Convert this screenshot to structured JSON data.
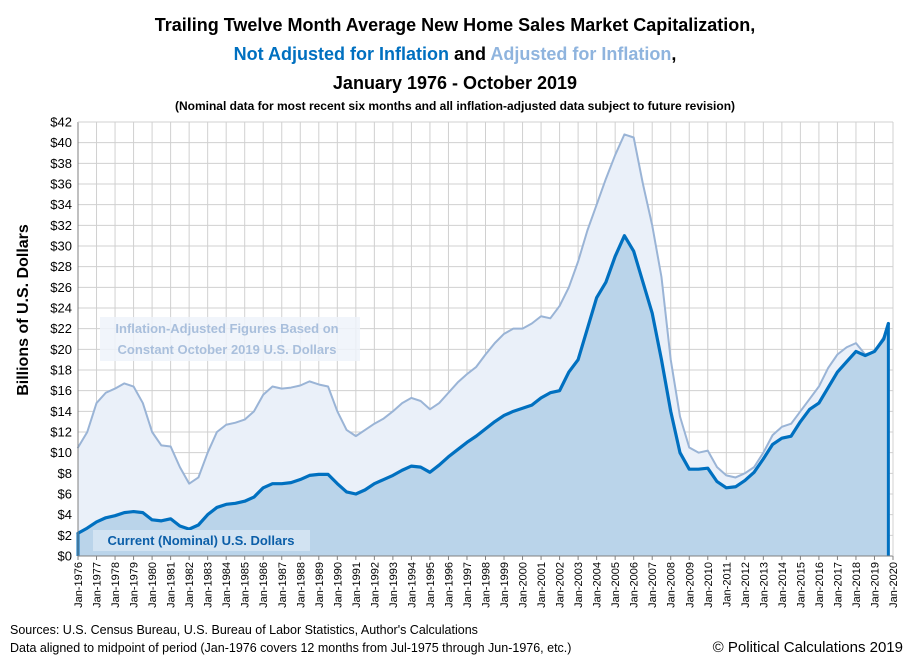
{
  "chart_data": {
    "type": "area",
    "title_lines": [
      "Trailing Twelve Month Average New Home Sales Market Capitalization,",
      "January 1976 - October 2019"
    ],
    "title_nominal": "Not Adjusted for Inflation",
    "title_and": " and ",
    "title_adjusted": "Adjusted for Inflation",
    "title_comma": ",",
    "subtitle": "(Nominal data for most recent six months and all inflation-adjusted data subject to future revision)",
    "ylabel": "Billions of U.S. Dollars",
    "ylim": [
      0,
      42
    ],
    "yticks": [
      0,
      2,
      4,
      6,
      8,
      10,
      12,
      14,
      16,
      18,
      20,
      22,
      24,
      26,
      28,
      30,
      32,
      34,
      36,
      38,
      40,
      42
    ],
    "ytick_prefix": "$",
    "xlim": [
      1976,
      2020
    ],
    "xtick_labels": [
      "Jan-1976",
      "Jan-1977",
      "Jan-1978",
      "Jan-1979",
      "Jan-1980",
      "Jan-1981",
      "Jan-1982",
      "Jan-1983",
      "Jan-1984",
      "Jan-1985",
      "Jan-1986",
      "Jan-1987",
      "Jan-1988",
      "Jan-1989",
      "Jan-1990",
      "Jan-1991",
      "Jan-1992",
      "Jan-1993",
      "Jan-1994",
      "Jan-1995",
      "Jan-1996",
      "Jan-1997",
      "Jan-1998",
      "Jan-1999",
      "Jan-2000",
      "Jan-2001",
      "Jan-2002",
      "Jan-2003",
      "Jan-2004",
      "Jan-2005",
      "Jan-2006",
      "Jan-2007",
      "Jan-2008",
      "Jan-2009",
      "Jan-2010",
      "Jan-2011",
      "Jan-2012",
      "Jan-2013",
      "Jan-2014",
      "Jan-2015",
      "Jan-2016",
      "Jan-2017",
      "Jan-2018",
      "Jan-2019",
      "Jan-2020"
    ],
    "grid": true,
    "series": [
      {
        "name": "Inflation-Adjusted Figures Based on Constant October 2019 U.S. Dollars",
        "color": "#9ab4d6",
        "fill": "#eaf0f9",
        "x": [
          1976.0,
          1976.5,
          1977.0,
          1977.5,
          1978.0,
          1978.5,
          1979.0,
          1979.5,
          1980.0,
          1980.5,
          1981.0,
          1981.5,
          1982.0,
          1982.5,
          1983.0,
          1983.5,
          1984.0,
          1984.5,
          1985.0,
          1985.5,
          1986.0,
          1986.5,
          1987.0,
          1987.5,
          1988.0,
          1988.5,
          1989.0,
          1989.5,
          1990.0,
          1990.5,
          1991.0,
          1991.5,
          1992.0,
          1992.5,
          1993.0,
          1993.5,
          1994.0,
          1994.5,
          1995.0,
          1995.5,
          1996.0,
          1996.5,
          1997.0,
          1997.5,
          1998.0,
          1998.5,
          1999.0,
          1999.5,
          2000.0,
          2000.5,
          2001.0,
          2001.5,
          2002.0,
          2002.5,
          2003.0,
          2003.5,
          2004.0,
          2004.5,
          2005.0,
          2005.5,
          2006.0,
          2006.5,
          2007.0,
          2007.5,
          2008.0,
          2008.5,
          2009.0,
          2009.5,
          2010.0,
          2010.5,
          2011.0,
          2011.5,
          2012.0,
          2012.5,
          2013.0,
          2013.5,
          2014.0,
          2014.5,
          2015.0,
          2015.5,
          2016.0,
          2016.5,
          2017.0,
          2017.5,
          2018.0,
          2018.5,
          2019.0,
          2019.5,
          2019.75
        ],
        "values": [
          10.5,
          12.0,
          14.8,
          15.8,
          16.2,
          16.7,
          16.4,
          14.8,
          12.0,
          10.7,
          10.6,
          8.6,
          7.0,
          7.6,
          10.0,
          12.0,
          12.7,
          12.9,
          13.2,
          14.0,
          15.6,
          16.4,
          16.2,
          16.3,
          16.5,
          16.9,
          16.6,
          16.4,
          14.0,
          12.2,
          11.6,
          12.2,
          12.8,
          13.3,
          14.0,
          14.8,
          15.3,
          15.0,
          14.2,
          14.8,
          15.8,
          16.8,
          17.6,
          18.3,
          19.5,
          20.6,
          21.5,
          22.0,
          22.0,
          22.5,
          23.2,
          23.0,
          24.2,
          26.0,
          28.5,
          31.5,
          34.0,
          36.5,
          38.8,
          40.8,
          40.5,
          36.0,
          32.0,
          27.0,
          19.0,
          13.5,
          10.5,
          10.0,
          10.2,
          8.6,
          7.8,
          7.6,
          8.0,
          8.6,
          10.0,
          11.7,
          12.5,
          12.8,
          14.0,
          15.2,
          16.4,
          18.2,
          19.5,
          20.2,
          20.6,
          19.5,
          19.8,
          21.2,
          22.5
        ]
      },
      {
        "name": "Current (Nominal) U.S. Dollars",
        "color": "#0070c0",
        "fill": "#bad4ea",
        "x": [
          1976.0,
          1976.5,
          1977.0,
          1977.5,
          1978.0,
          1978.5,
          1979.0,
          1979.5,
          1980.0,
          1980.5,
          1981.0,
          1981.5,
          1982.0,
          1982.5,
          1983.0,
          1983.5,
          1984.0,
          1984.5,
          1985.0,
          1985.5,
          1986.0,
          1986.5,
          1987.0,
          1987.5,
          1988.0,
          1988.5,
          1989.0,
          1989.5,
          1990.0,
          1990.5,
          1991.0,
          1991.5,
          1992.0,
          1992.5,
          1993.0,
          1993.5,
          1994.0,
          1994.5,
          1995.0,
          1995.5,
          1996.0,
          1996.5,
          1997.0,
          1997.5,
          1998.0,
          1998.5,
          1999.0,
          1999.5,
          2000.0,
          2000.5,
          2001.0,
          2001.5,
          2002.0,
          2002.5,
          2003.0,
          2003.5,
          2004.0,
          2004.5,
          2005.0,
          2005.5,
          2006.0,
          2006.5,
          2007.0,
          2007.5,
          2008.0,
          2008.5,
          2009.0,
          2009.5,
          2010.0,
          2010.5,
          2011.0,
          2011.5,
          2012.0,
          2012.5,
          2013.0,
          2013.5,
          2014.0,
          2014.5,
          2015.0,
          2015.5,
          2016.0,
          2016.5,
          2017.0,
          2017.5,
          2018.0,
          2018.5,
          2019.0,
          2019.5,
          2019.75
        ],
        "values": [
          2.2,
          2.7,
          3.3,
          3.7,
          3.9,
          4.2,
          4.3,
          4.2,
          3.5,
          3.4,
          3.6,
          2.9,
          2.6,
          3.0,
          4.0,
          4.7,
          5.0,
          5.1,
          5.3,
          5.7,
          6.6,
          7.0,
          7.0,
          7.1,
          7.4,
          7.8,
          7.9,
          7.9,
          7.0,
          6.2,
          6.0,
          6.4,
          7.0,
          7.4,
          7.8,
          8.3,
          8.7,
          8.6,
          8.1,
          8.8,
          9.6,
          10.3,
          11.0,
          11.6,
          12.3,
          13.0,
          13.6,
          14.0,
          14.3,
          14.6,
          15.3,
          15.8,
          16.0,
          17.8,
          19.0,
          22.0,
          25.0,
          26.5,
          29.0,
          31.0,
          29.5,
          26.5,
          23.5,
          19.0,
          14.0,
          10.0,
          8.4,
          8.4,
          8.5,
          7.2,
          6.6,
          6.7,
          7.3,
          8.1,
          9.4,
          10.8,
          11.4,
          11.6,
          13.0,
          14.2,
          14.8,
          16.3,
          17.8,
          18.8,
          19.8,
          19.4,
          19.8,
          21.0,
          22.5
        ]
      }
    ],
    "annotation_adjusted_lines": [
      "Inflation-Adjusted Figures Based on",
      "Constant October 2019 U.S. Dollars"
    ],
    "annotation_nominal": "Current (Nominal) U.S. Dollars"
  },
  "footer": {
    "source_line1": "Sources: U.S. Census Bureau, U.S. Bureau of Labor Statistics, Author's Calculations",
    "source_line2": "Data aligned to midpoint of period (Jan-1976 covers 12 months from Jul-1975 through Jun-1976, etc.)",
    "credit": "© Political Calculations 2019"
  }
}
